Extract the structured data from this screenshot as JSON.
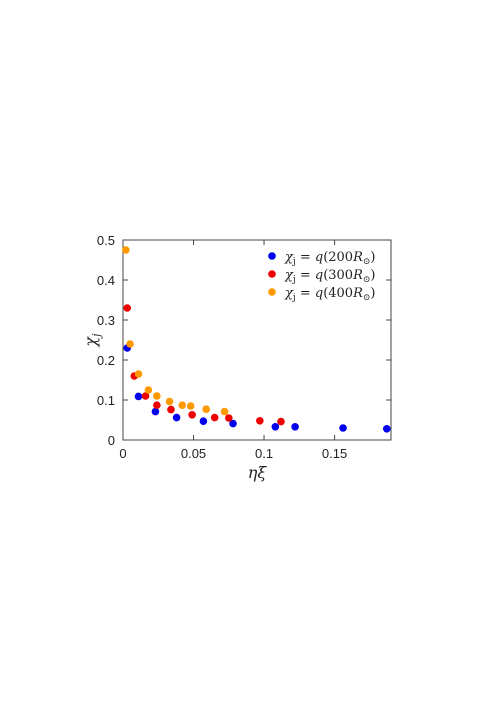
{
  "chart_data": {
    "type": "scatter",
    "xlabel": "ηξ",
    "ylabel": "χ",
    "ylabel_subscript": "j",
    "xlim": [
      0,
      0.19
    ],
    "ylim": [
      0,
      0.5
    ],
    "xticks": [
      0,
      0.05,
      0.1,
      0.15
    ],
    "xtick_labels": [
      "0",
      "0.05",
      "0.1",
      "0.15"
    ],
    "yticks": [
      0,
      0.1,
      0.2,
      0.3,
      0.4,
      0.5
    ],
    "ytick_labels": [
      "0",
      "0.1",
      "0.2",
      "0.3",
      "0.4",
      "0.5"
    ],
    "grid": false,
    "legend_position": "top-right",
    "series": [
      {
        "name": "χj = q(200R⊙)",
        "legend_parts": [
          "χ",
          "j",
          " = ",
          "q",
          "(200",
          "R",
          "⊙",
          ")"
        ],
        "color": "#0000ee",
        "x": [
          0.003,
          0.011,
          0.023,
          0.038,
          0.057,
          0.078,
          0.108,
          0.122,
          0.156,
          0.187
        ],
        "y": [
          0.23,
          0.109,
          0.071,
          0.056,
          0.047,
          0.041,
          0.033,
          0.033,
          0.03,
          0.028
        ]
      },
      {
        "name": "χj = q(300R⊙)",
        "legend_parts": [
          "χ",
          "j",
          " = ",
          "q",
          "(300",
          "R",
          "⊙",
          ")"
        ],
        "color": "#ee0000",
        "x": [
          0.003,
          0.008,
          0.016,
          0.024,
          0.034,
          0.049,
          0.065,
          0.075,
          0.097,
          0.112
        ],
        "y": [
          0.33,
          0.16,
          0.11,
          0.087,
          0.076,
          0.063,
          0.056,
          0.055,
          0.048,
          0.046
        ]
      },
      {
        "name": "χj = q(400R⊙)",
        "legend_parts": [
          "χ",
          "j",
          " = ",
          "q",
          "(400",
          "R",
          "⊙",
          ")"
        ],
        "color": "#ff9900",
        "x": [
          0.002,
          0.005,
          0.011,
          0.018,
          0.024,
          0.033,
          0.042,
          0.048,
          0.059,
          0.072
        ],
        "y": [
          0.475,
          0.24,
          0.165,
          0.125,
          0.11,
          0.096,
          0.087,
          0.085,
          0.077,
          0.071
        ]
      }
    ]
  }
}
